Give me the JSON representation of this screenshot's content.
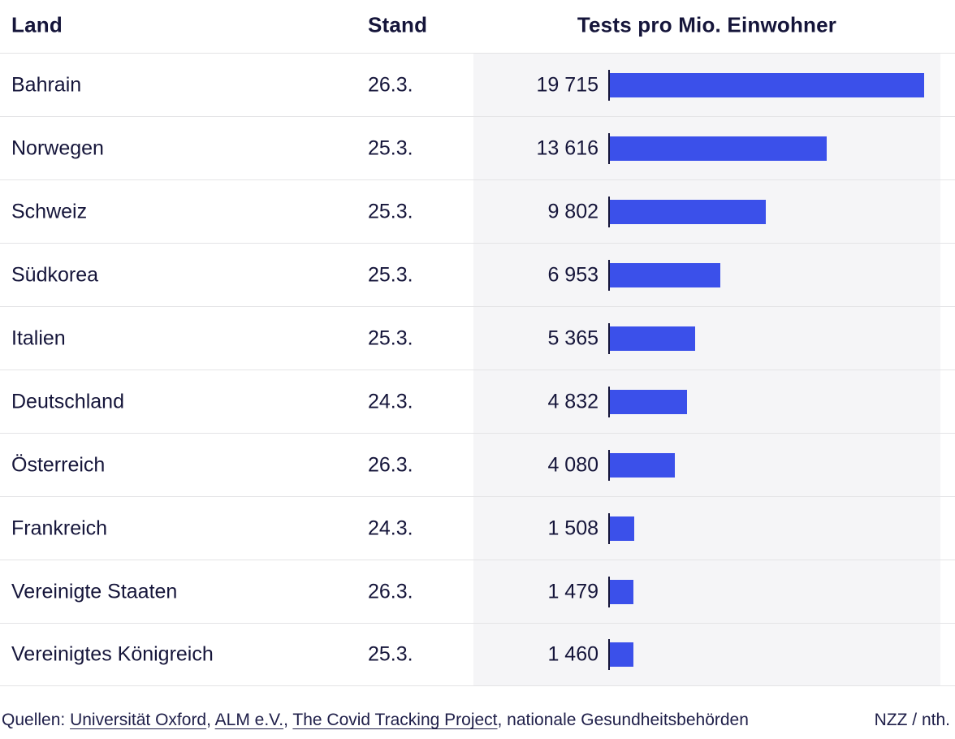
{
  "chart_data": {
    "type": "bar",
    "title": "Tests pro Mio. Einwohner",
    "orientation": "horizontal",
    "xlim": [
      0,
      19715
    ],
    "grid": false,
    "columns": {
      "country": "Land",
      "date": "Stand",
      "tests": "Tests pro Mio. Einwohner"
    },
    "categories": [
      "Bahrain",
      "Norwegen",
      "Schweiz",
      "Südkorea",
      "Italien",
      "Deutschland",
      "Österreich",
      "Frankreich",
      "Vereinigte Staaten",
      "Vereinigtes Königreich"
    ],
    "values": [
      19715,
      13616,
      9802,
      6953,
      5365,
      4832,
      4080,
      1508,
      1479,
      1460
    ],
    "rows": [
      {
        "country": "Bahrain",
        "date": "26.3.",
        "value": 19715,
        "value_label": "19 715"
      },
      {
        "country": "Norwegen",
        "date": "25.3.",
        "value": 13616,
        "value_label": "13 616"
      },
      {
        "country": "Schweiz",
        "date": "25.3.",
        "value": 9802,
        "value_label": "9 802"
      },
      {
        "country": "Südkorea",
        "date": "25.3.",
        "value": 6953,
        "value_label": "6 953"
      },
      {
        "country": "Italien",
        "date": "25.3.",
        "value": 5365,
        "value_label": "5 365"
      },
      {
        "country": "Deutschland",
        "date": "24.3.",
        "value": 4832,
        "value_label": "4 832"
      },
      {
        "country": "Österreich",
        "date": "26.3.",
        "value": 4080,
        "value_label": "4 080"
      },
      {
        "country": "Frankreich",
        "date": "24.3.",
        "value": 1508,
        "value_label": "1 508"
      },
      {
        "country": "Vereinigte Staaten",
        "date": "26.3.",
        "value": 1479,
        "value_label": "1 479"
      },
      {
        "country": "Vereinigtes Königreich",
        "date": "25.3.",
        "value": 1460,
        "value_label": "1 460"
      }
    ]
  },
  "footer": {
    "parts": [
      {
        "text": "Quellen: "
      },
      {
        "text": "Universität Oxford"
      },
      {
        "text": ", "
      },
      {
        "text": "ALM e.V."
      },
      {
        "text": ", "
      },
      {
        "text": "The Covid Tracking Project"
      },
      {
        "text": ", nationale Gesundheitsbehörden"
      }
    ],
    "credit": "NZZ / nth."
  },
  "colors": {
    "bar": "#3b50ea",
    "text": "#15153a",
    "chart_background": "#f5f5f7",
    "divider": "#e4e4e6",
    "axis": "#15153a"
  }
}
